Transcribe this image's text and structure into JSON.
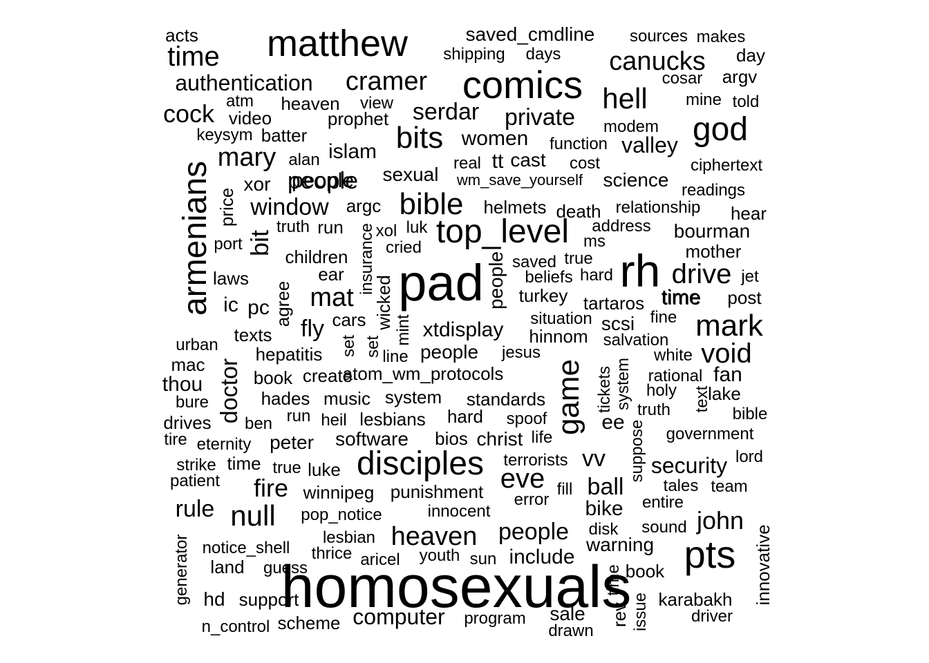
{
  "words": [
    {
      "text": "homosexuals"
    },
    {
      "text": "pad"
    },
    {
      "text": "rh"
    },
    {
      "text": "matthew"
    },
    {
      "text": "comics"
    },
    {
      "text": "pts"
    },
    {
      "text": "god"
    },
    {
      "text": "armenians"
    },
    {
      "text": "disciples"
    },
    {
      "text": "game"
    },
    {
      "text": "top_level"
    },
    {
      "text": "mark"
    },
    {
      "text": "bible"
    },
    {
      "text": "time"
    },
    {
      "text": "canucks"
    },
    {
      "text": "hell"
    },
    {
      "text": "cramer"
    },
    {
      "text": "bits"
    },
    {
      "text": "null"
    },
    {
      "text": "heaven"
    },
    {
      "text": "void"
    },
    {
      "text": "drive"
    },
    {
      "text": "eve"
    },
    {
      "text": "john"
    },
    {
      "text": "mat"
    },
    {
      "text": "mary"
    },
    {
      "text": "serdar"
    },
    {
      "text": "private"
    },
    {
      "text": "cock"
    },
    {
      "text": "people"
    },
    {
      "text": "window"
    },
    {
      "text": "fire"
    },
    {
      "text": "authentication"
    },
    {
      "text": "security"
    },
    {
      "text": "vv"
    },
    {
      "text": "ball"
    },
    {
      "text": "bit"
    },
    {
      "text": "doctor"
    },
    {
      "text": "computer"
    },
    {
      "text": "rule"
    },
    {
      "text": "valley"
    },
    {
      "text": "women"
    },
    {
      "text": "xtdisplay"
    },
    {
      "text": "people"
    },
    {
      "text": "fly"
    },
    {
      "text": "islam"
    },
    {
      "text": "saved_cmdline"
    },
    {
      "text": "time"
    },
    {
      "text": "pc"
    },
    {
      "text": "ee"
    },
    {
      "text": "thou"
    },
    {
      "text": "include"
    },
    {
      "text": "tt"
    },
    {
      "text": "sexual"
    },
    {
      "text": "winnipeg"
    },
    {
      "text": "punishment"
    },
    {
      "text": "atom_wm_protocols"
    },
    {
      "text": "people"
    },
    {
      "text": "fan"
    },
    {
      "text": "bike"
    },
    {
      "text": "warning"
    },
    {
      "text": "hd"
    },
    {
      "text": "people"
    },
    {
      "text": "xor"
    },
    {
      "text": "ic"
    },
    {
      "text": "science"
    },
    {
      "text": "bourman"
    },
    {
      "text": "peter"
    },
    {
      "text": "software"
    },
    {
      "text": "christ"
    },
    {
      "text": "price"
    },
    {
      "text": "sale"
    },
    {
      "text": "lake"
    },
    {
      "text": "time"
    },
    {
      "text": "day"
    },
    {
      "text": "argv"
    },
    {
      "text": "hades"
    },
    {
      "text": "music"
    },
    {
      "text": "system"
    },
    {
      "text": "standards"
    },
    {
      "text": "lesbians"
    },
    {
      "text": "hard"
    },
    {
      "text": "bios"
    },
    {
      "text": "cast"
    },
    {
      "text": "karabakh"
    },
    {
      "text": "innovative"
    },
    {
      "text": "helmets"
    },
    {
      "text": "turkey"
    },
    {
      "text": "scsi"
    },
    {
      "text": "tartaros"
    },
    {
      "text": "hinnom"
    },
    {
      "text": "cars"
    },
    {
      "text": "ear"
    },
    {
      "text": "children"
    },
    {
      "text": "argc"
    },
    {
      "text": "run"
    },
    {
      "text": "modem"
    },
    {
      "text": "function"
    },
    {
      "text": "real"
    },
    {
      "text": "cost"
    },
    {
      "text": "wm_save_yourself"
    },
    {
      "text": "ciphertext"
    },
    {
      "text": "readings"
    },
    {
      "text": "relationship"
    },
    {
      "text": "death"
    },
    {
      "text": "hear"
    },
    {
      "text": "address"
    },
    {
      "text": "ms"
    },
    {
      "text": "mother"
    },
    {
      "text": "true"
    },
    {
      "text": "saved"
    },
    {
      "text": "beliefs"
    },
    {
      "text": "hard"
    },
    {
      "text": "jet"
    },
    {
      "text": "post"
    },
    {
      "text": "situation"
    },
    {
      "text": "fine"
    },
    {
      "text": "salvation"
    },
    {
      "text": "white"
    },
    {
      "text": "rational"
    },
    {
      "text": "holy"
    },
    {
      "text": "truth"
    },
    {
      "text": "bible"
    },
    {
      "text": "government"
    },
    {
      "text": "lord"
    },
    {
      "text": "tales"
    },
    {
      "text": "team"
    },
    {
      "text": "entire"
    },
    {
      "text": "sound"
    },
    {
      "text": "disk"
    },
    {
      "text": "book"
    },
    {
      "text": "driver"
    },
    {
      "text": "issue"
    },
    {
      "text": "rev"
    },
    {
      "text": "time"
    },
    {
      "text": "drawn"
    },
    {
      "text": "program"
    },
    {
      "text": "scheme"
    },
    {
      "text": "n_control"
    },
    {
      "text": "generator"
    },
    {
      "text": "support"
    },
    {
      "text": "land"
    },
    {
      "text": "guess"
    },
    {
      "text": "notice_shell"
    },
    {
      "text": "thrice"
    },
    {
      "text": "aricel"
    },
    {
      "text": "youth"
    },
    {
      "text": "sun"
    },
    {
      "text": "lesbian"
    },
    {
      "text": "pop_notice"
    },
    {
      "text": "innocent"
    },
    {
      "text": "error"
    },
    {
      "text": "fill"
    },
    {
      "text": "terrorists"
    },
    {
      "text": "life"
    },
    {
      "text": "spoof"
    },
    {
      "text": "heil"
    },
    {
      "text": "run"
    },
    {
      "text": "ben"
    },
    {
      "text": "drives"
    },
    {
      "text": "tire"
    },
    {
      "text": "eternity"
    },
    {
      "text": "strike"
    },
    {
      "text": "time"
    },
    {
      "text": "patient"
    },
    {
      "text": "true"
    },
    {
      "text": "luke"
    },
    {
      "text": "bure"
    },
    {
      "text": "mac"
    },
    {
      "text": "urban"
    },
    {
      "text": "texts"
    },
    {
      "text": "hepatitis"
    },
    {
      "text": "book"
    },
    {
      "text": "create"
    },
    {
      "text": "line"
    },
    {
      "text": "laws"
    },
    {
      "text": "port"
    },
    {
      "text": "truth"
    },
    {
      "text": "alan"
    },
    {
      "text": "keysym"
    },
    {
      "text": "batter"
    },
    {
      "text": "video"
    },
    {
      "text": "atm"
    },
    {
      "text": "heaven"
    },
    {
      "text": "view"
    },
    {
      "text": "prophet"
    },
    {
      "text": "acts"
    },
    {
      "text": "shipping"
    },
    {
      "text": "days"
    },
    {
      "text": "sources"
    },
    {
      "text": "makes"
    },
    {
      "text": "cosar"
    },
    {
      "text": "mine"
    },
    {
      "text": "told"
    },
    {
      "text": "xol"
    },
    {
      "text": "luk"
    },
    {
      "text": "cried"
    },
    {
      "text": "jesus"
    },
    {
      "text": "agree"
    },
    {
      "text": "insurance"
    },
    {
      "text": "wicked"
    },
    {
      "text": "mint"
    },
    {
      "text": "set"
    },
    {
      "text": "set"
    },
    {
      "text": "people"
    },
    {
      "text": "tickets"
    },
    {
      "text": "system"
    },
    {
      "text": "suppose"
    },
    {
      "text": "text"
    }
  ]
}
